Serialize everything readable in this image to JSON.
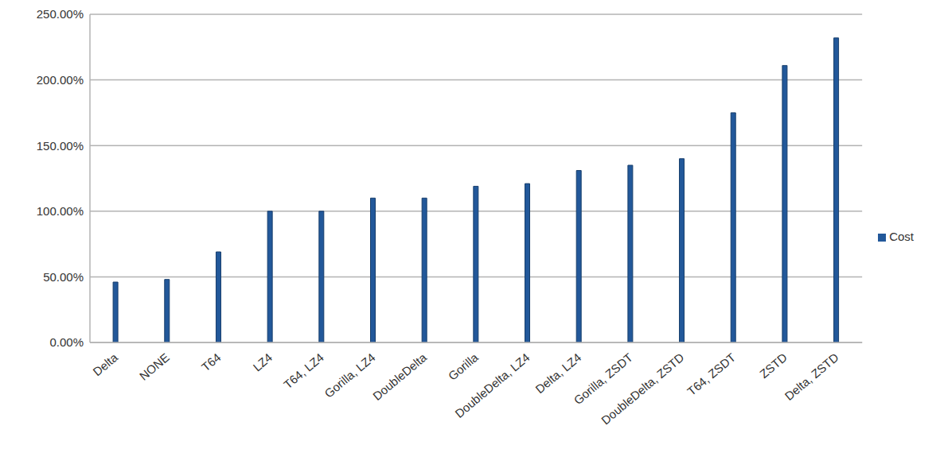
{
  "chart_data": {
    "type": "bar",
    "categories": [
      "Delta",
      "NONE",
      "T64",
      "LZ4",
      "T64, LZ4",
      "Gorilla, LZ4",
      "DoubleDelta",
      "Gorilla",
      "DoubleDelta, LZ4",
      "Delta, LZ4",
      "Gorilla, ZSDT",
      "DoubleDelta, ZSTD",
      "T64, ZSDT",
      "ZSTD",
      "Delta, ZSTD"
    ],
    "series": [
      {
        "name": "Cost",
        "color": "#22589a",
        "values": [
          46,
          48,
          69,
          100,
          100,
          110,
          110,
          119,
          121,
          131,
          135,
          140,
          175,
          211,
          232
        ]
      }
    ],
    "ylim": [
      0,
      250
    ],
    "yticks": [
      {
        "value": 0,
        "label": "0.00%"
      },
      {
        "value": 50,
        "label": "50.00%"
      },
      {
        "value": 100,
        "label": "100.00%"
      },
      {
        "value": 150,
        "label": "150.00%"
      },
      {
        "value": 200,
        "label": "200.00%"
      },
      {
        "value": 250,
        "label": "250.00%"
      }
    ],
    "grid": true,
    "legend": "right"
  }
}
